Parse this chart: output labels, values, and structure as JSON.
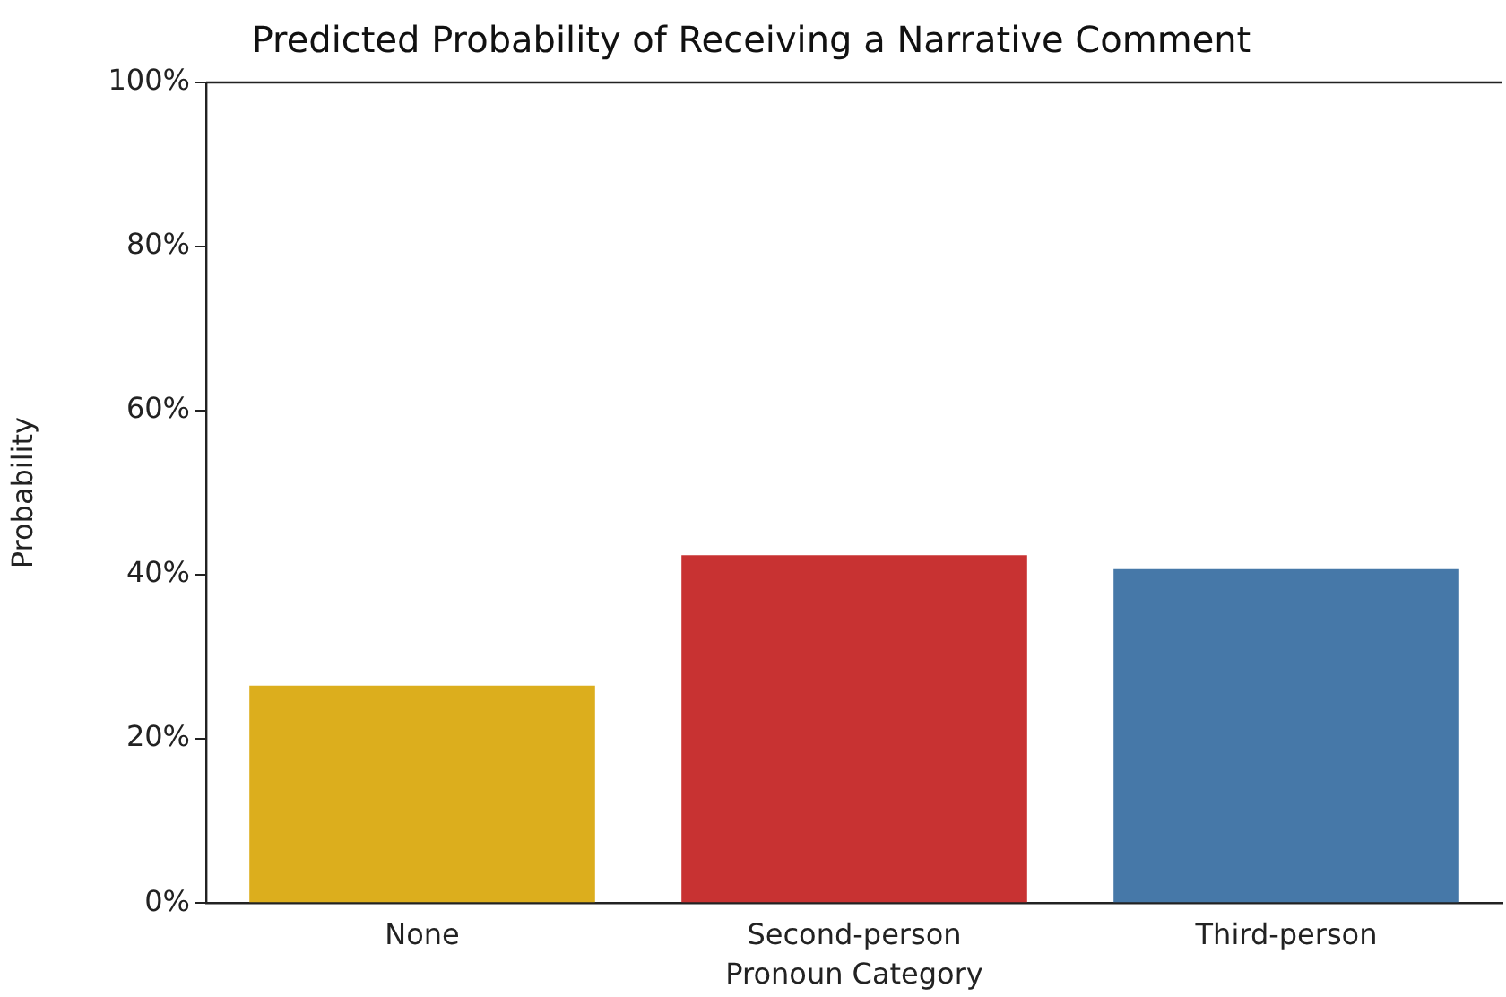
{
  "chart_data": {
    "type": "bar",
    "title": "Predicted Probability of Receiving a Narrative Comment",
    "xlabel": "Pronoun Category",
    "ylabel": "Probability",
    "categories": [
      "None",
      "Second-person",
      "Third-person"
    ],
    "values": [
      26.5,
      42.4,
      40.7
    ],
    "colors": [
      "#dcae1d",
      "#c83232",
      "#4678a8"
    ],
    "ylim": [
      0,
      100
    ],
    "yticks": [
      {
        "value": 0,
        "label": "0%"
      },
      {
        "value": 20,
        "label": "20%"
      },
      {
        "value": 40,
        "label": "40%"
      },
      {
        "value": 60,
        "label": "60%"
      },
      {
        "value": 80,
        "label": "80%"
      },
      {
        "value": 100,
        "label": "100%"
      }
    ],
    "grid": false,
    "legend": false
  }
}
